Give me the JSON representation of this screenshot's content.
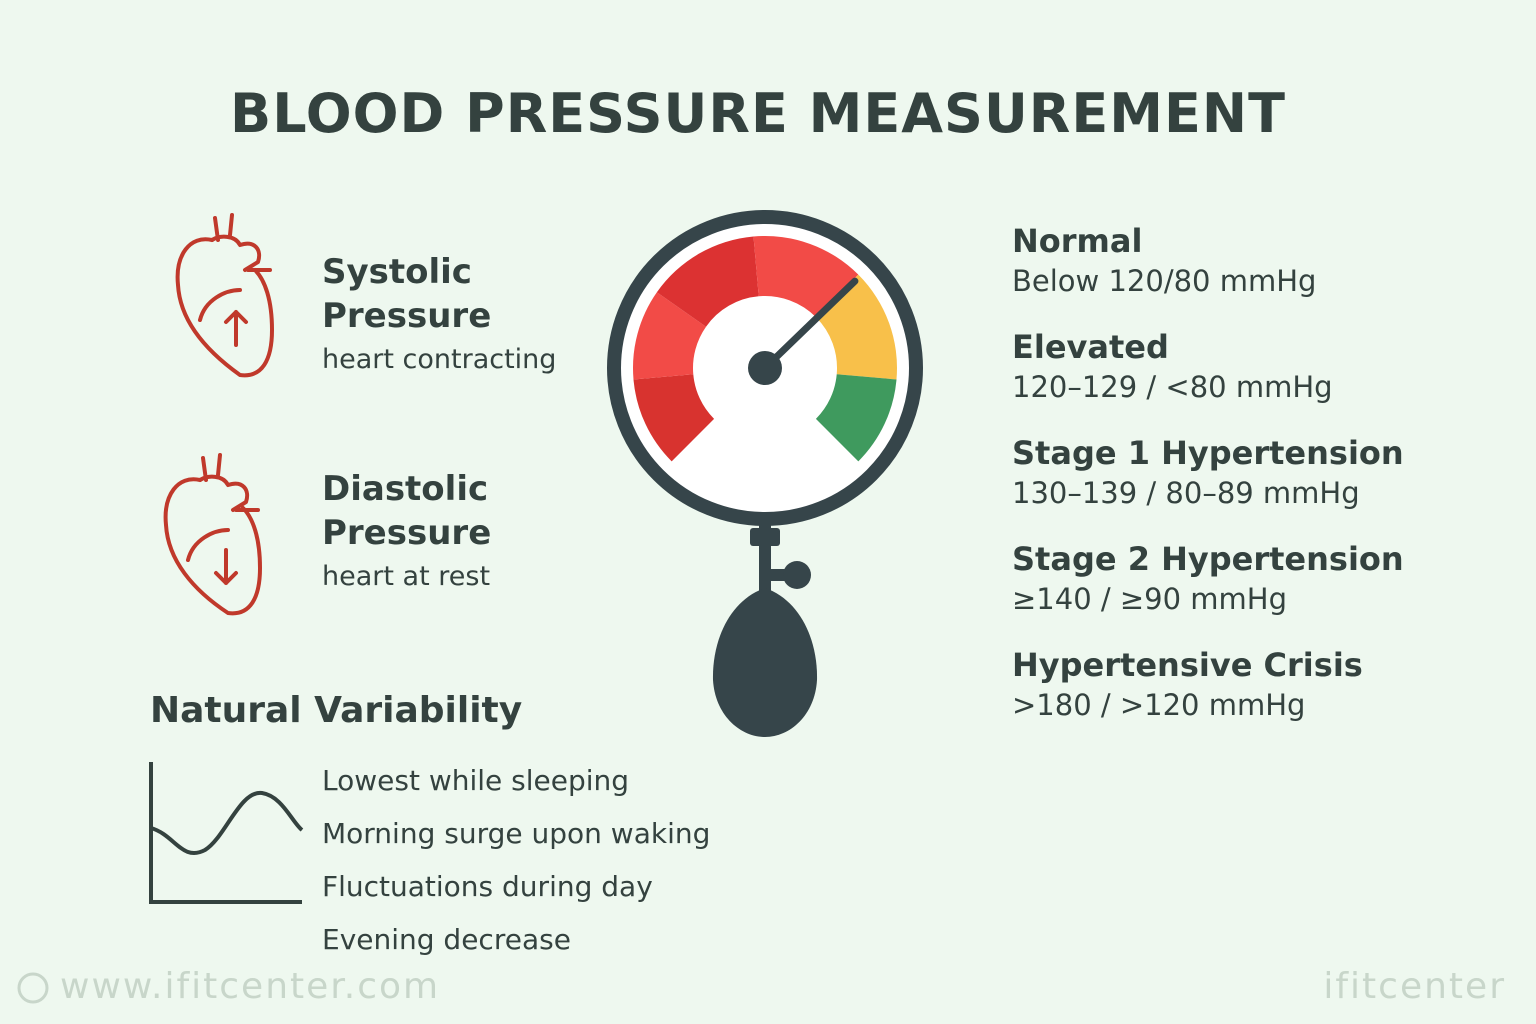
{
  "title": "BLOOD PRESSURE MEASUREMENT",
  "pressures": [
    {
      "name": "Systolic Pressure",
      "description": "heart contracting"
    },
    {
      "name": "Diastolic Pressure",
      "description": "heart at rest"
    }
  ],
  "categories": [
    {
      "name": "Normal",
      "range": "Below 120/80 mmHg"
    },
    {
      "name": "Elevated",
      "range": "120–129 / <80 mmHg"
    },
    {
      "name": "Stage 1 Hypertension",
      "range": "130–139 / 80–89 mmHg"
    },
    {
      "name": "Stage 2 Hypertension",
      "range": "≥140 / ≥90 mmHg"
    },
    {
      "name": "Hypertensive Crisis",
      "range": ">180 / >120 mmHg"
    }
  ],
  "variability": {
    "title": "Natural Variability",
    "items": [
      "Lowest while sleeping",
      "Morning surge upon waking",
      "Fluctuations during day",
      "Evening decrease"
    ]
  },
  "footer": {
    "url": "www.ifitcenter.com",
    "brand": "ifitcenter"
  }
}
